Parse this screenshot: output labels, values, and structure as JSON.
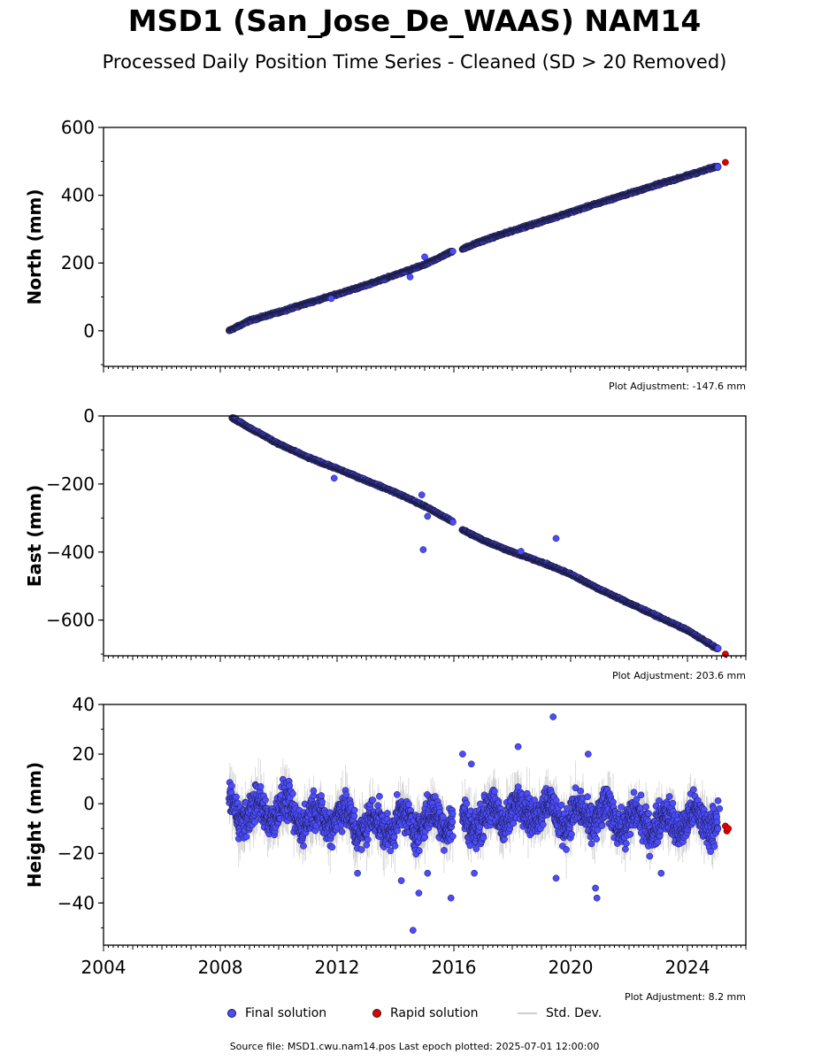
{
  "header": {
    "title": "MSD1 (San_Jose_De_WAAS) NAM14",
    "subtitle": "Processed Daily Position Time Series - Cleaned (SD > 20 Removed)"
  },
  "colors": {
    "final": "#4b4bff",
    "rapid": "#e00000",
    "stddev": "#c8c8c8"
  },
  "legend": {
    "final_label": "Final solution",
    "rapid_label": "Rapid solution",
    "std_label": "Std. Dev."
  },
  "footer": {
    "source": "Source file: MSD1.cwu.nam14.pos  Last epoch plotted: 2025-07-01 12:00:00"
  },
  "chart_data": [
    {
      "type": "scatter",
      "ylabel": "North (mm)",
      "adjustment": "Plot Adjustment: -147.6 mm",
      "xlim": [
        2004,
        2026
      ],
      "ylim": [
        -105,
        600
      ],
      "yticks": [
        0,
        200,
        400,
        600
      ],
      "ytick_labels": [
        "0",
        "200",
        "400",
        "600"
      ],
      "series": [
        {
          "name": "Final solution",
          "x": [
            2008.3,
            2009,
            2010,
            2011,
            2012,
            2013,
            2014,
            2015,
            2015.95,
            2016.3,
            2017,
            2018,
            2019,
            2020,
            2021,
            2022,
            2023,
            2024,
            2025
          ],
          "values": [
            0,
            30,
            55,
            82,
            108,
            135,
            165,
            195,
            235,
            242,
            266,
            295,
            322,
            350,
            378,
            405,
            432,
            458,
            485
          ]
        },
        {
          "name": "Rapid solution",
          "x": [
            2025.3
          ],
          "values": [
            497
          ]
        }
      ],
      "outliers": [
        {
          "x": 2014.5,
          "y": 159
        },
        {
          "x": 2011.8,
          "y": 95
        },
        {
          "x": 2015.0,
          "y": 218
        }
      ]
    },
    {
      "type": "scatter",
      "ylabel": "East (mm)",
      "adjustment": "Plot Adjustment: 203.6 mm",
      "xlim": [
        2004,
        2026
      ],
      "ylim": [
        -705,
        0
      ],
      "yticks": [
        0,
        -200,
        -400,
        -600
      ],
      "ytick_labels": [
        "0",
        "−200",
        "−400",
        "−600"
      ],
      "series": [
        {
          "name": "Final solution",
          "x": [
            2008.4,
            2009,
            2010,
            2011,
            2012,
            2013,
            2014,
            2015,
            2015.95,
            2016.3,
            2017,
            2018,
            2019,
            2020,
            2021,
            2022,
            2023,
            2024,
            2025
          ],
          "values": [
            -5,
            -35,
            -82,
            -122,
            -155,
            -190,
            -225,
            -265,
            -310,
            -335,
            -365,
            -400,
            -430,
            -465,
            -510,
            -550,
            -590,
            -630,
            -683
          ]
        },
        {
          "name": "Rapid solution",
          "x": [
            2025.3
          ],
          "values": [
            -700
          ]
        }
      ],
      "outliers": [
        {
          "x": 2011.9,
          "y": -183
        },
        {
          "x": 2014.9,
          "y": -232
        },
        {
          "x": 2014.95,
          "y": -393
        },
        {
          "x": 2019.5,
          "y": -360
        },
        {
          "x": 2015.1,
          "y": -295
        },
        {
          "x": 2018.3,
          "y": -398
        }
      ]
    },
    {
      "type": "scatter",
      "ylabel": "Height (mm)",
      "adjustment": "Plot Adjustment: 8.2 mm",
      "xlim": [
        2004,
        2026
      ],
      "ylim": [
        -57,
        40
      ],
      "yticks": [
        40,
        20,
        0,
        -20,
        -40
      ],
      "ytick_labels": [
        "40",
        "20",
        "0",
        "−20",
        "−40"
      ],
      "xticks": [
        2004,
        2008,
        2012,
        2016,
        2020,
        2024
      ],
      "xtick_labels": [
        "2004",
        "2008",
        "2012",
        "2016",
        "2020",
        "2024"
      ],
      "series": [
        {
          "name": "Final solution",
          "x": [
            2008.3,
            2009,
            2010,
            2011,
            2012,
            2013,
            2014,
            2015,
            2015.95,
            2016.3,
            2017,
            2018,
            2019,
            2020,
            2021,
            2022,
            2023,
            2024,
            2025
          ],
          "values": [
            -1,
            -4,
            -2,
            -6,
            -5,
            -9,
            -8,
            -7,
            -6,
            -8,
            -6,
            -3,
            -2,
            -6,
            -4,
            -7,
            -8,
            -7,
            -6
          ]
        },
        {
          "name": "Rapid solution",
          "x": [
            2025.3,
            2025.35,
            2025.4
          ],
          "values": [
            -9,
            -11,
            -10
          ]
        }
      ],
      "outliers": [
        {
          "x": 2019.4,
          "y": 35
        },
        {
          "x": 2018.2,
          "y": 23
        },
        {
          "x": 2020.6,
          "y": 20
        },
        {
          "x": 2016.3,
          "y": 20
        },
        {
          "x": 2016.6,
          "y": 16
        },
        {
          "x": 2014.6,
          "y": -51
        },
        {
          "x": 2014.8,
          "y": -36
        },
        {
          "x": 2015.9,
          "y": -38
        },
        {
          "x": 2014.2,
          "y": -31
        },
        {
          "x": 2020.9,
          "y": -38
        },
        {
          "x": 2020.85,
          "y": -34
        },
        {
          "x": 2019.5,
          "y": -30
        },
        {
          "x": 2015.1,
          "y": -28
        },
        {
          "x": 2012.7,
          "y": -28
        },
        {
          "x": 2016.7,
          "y": -28
        },
        {
          "x": 2023.1,
          "y": -28
        },
        {
          "x": 2025.1,
          "y": -2
        }
      ]
    }
  ]
}
